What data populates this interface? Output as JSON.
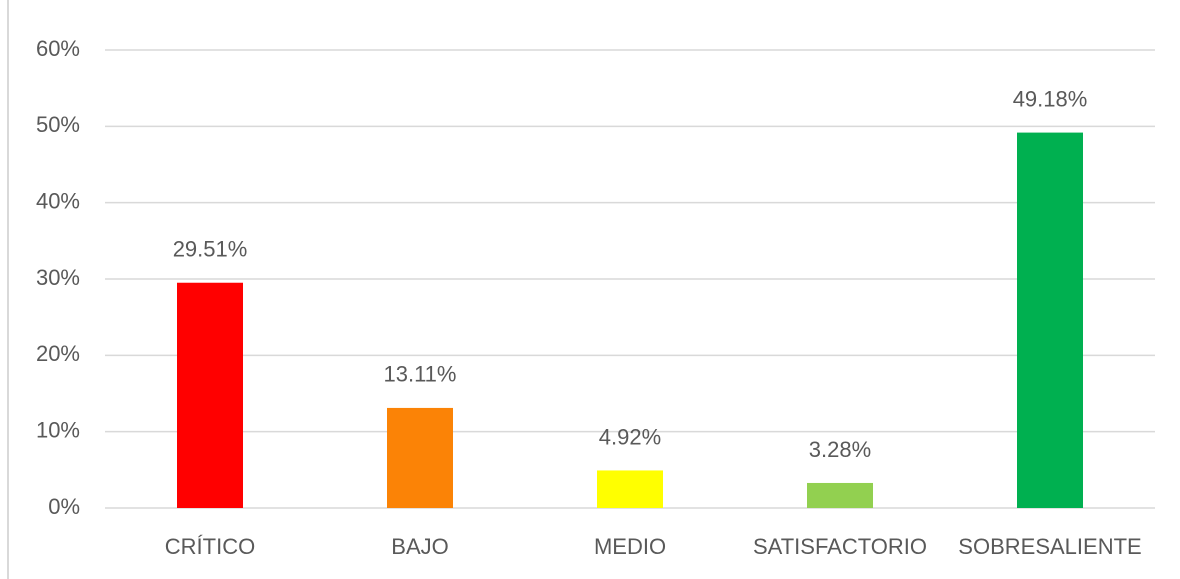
{
  "chart_data": {
    "type": "bar",
    "categories": [
      "CRÍTICO",
      "BAJO",
      "MEDIO",
      "SATISFACTORIO",
      "SOBRESALIENTE"
    ],
    "values": [
      29.51,
      13.11,
      4.92,
      3.28,
      49.18
    ],
    "value_labels": [
      "29.51%",
      "13.11%",
      "4.92%",
      "3.28%",
      "49.18%"
    ],
    "colors": [
      "#ff0000",
      "#fb8306",
      "#ffff00",
      "#92d050",
      "#00b050"
    ],
    "ylim": [
      0,
      60
    ],
    "yticks": [
      {
        "value": 0,
        "label": "0%"
      },
      {
        "value": 10,
        "label": "10%"
      },
      {
        "value": 20,
        "label": "20%"
      },
      {
        "value": 30,
        "label": "30%"
      },
      {
        "value": 40,
        "label": "40%"
      },
      {
        "value": 50,
        "label": "50%"
      },
      {
        "value": 60,
        "label": "60%"
      }
    ],
    "grid": true
  }
}
